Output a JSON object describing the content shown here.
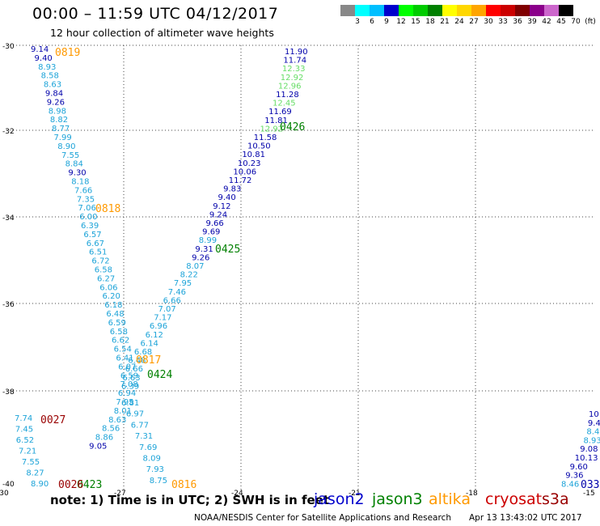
{
  "header": {
    "title": "00:00 – 11:59 UTC 04/12/2017",
    "subtitle": "12 hour collection of altimeter wave heights"
  },
  "legend": {
    "unit": "(ft)",
    "bins": [
      {
        "label": "3",
        "color": "#888888"
      },
      {
        "label": "6",
        "color": "#00ffff"
      },
      {
        "label": "9",
        "color": "#00bfff"
      },
      {
        "label": "12",
        "color": "#0000cd"
      },
      {
        "label": "15",
        "color": "#00ff00"
      },
      {
        "label": "18",
        "color": "#00cc00"
      },
      {
        "label": "21",
        "color": "#008000"
      },
      {
        "label": "24",
        "color": "#ffff00"
      },
      {
        "label": "27",
        "color": "#ffd700"
      },
      {
        "label": "30",
        "color": "#ffa500"
      },
      {
        "label": "33",
        "color": "#ff0000"
      },
      {
        "label": "36",
        "color": "#cc0000"
      },
      {
        "label": "39",
        "color": "#800000"
      },
      {
        "label": "42",
        "color": "#8b008b"
      },
      {
        "label": "45",
        "color": "#cc66cc"
      },
      {
        "label": "70",
        "color": "#000000"
      }
    ]
  },
  "axes": {
    "lat_ticks": [
      "-30",
      "-32",
      "-34",
      "-36",
      "-38",
      "-40"
    ],
    "lon_ticks": [
      "-30",
      "-27",
      "-24",
      "-21",
      "-18",
      "-15"
    ]
  },
  "colors": {
    "light_blue": "#1ca3d8",
    "dark_blue": "#0000aa",
    "light_green": "#66dd66",
    "dark_green": "#008000",
    "orange": "#ff9900",
    "dark_red": "#990000"
  },
  "tracks": [
    {
      "color": "light_blue",
      "values": [
        "9.14",
        "9.40",
        "8.93",
        "8.58",
        "8.63",
        "9.84",
        "9.26",
        "8.98",
        "8.82",
        "8.77",
        "7.99",
        "8.90",
        "7.55",
        "8.84",
        "9.30",
        "8.18",
        "7.66",
        "7.35",
        "7.06",
        "6.00",
        "6.39",
        "6.57",
        "6.67",
        "6.51",
        "6.72",
        "6.58",
        "6.27",
        "6.06",
        "6.20",
        "6.18",
        "6.48",
        "6.59",
        "6.58",
        "6.62",
        "6.54",
        "6.41",
        "6.07",
        "6.59",
        "7.08",
        "6.94",
        "7.95",
        "8.01",
        "8.63",
        "8.56",
        "8.86",
        "9.05"
      ]
    },
    {
      "color": "light_blue",
      "values": [
        "11.90",
        "11.74",
        "12.33",
        "12.92",
        "12.96",
        "11.28",
        "12.45",
        "11.69",
        "11.81",
        "12.92",
        "11.58",
        "10.50",
        "10.81",
        "10.23",
        "10.06",
        "11.72",
        "9.83",
        "9.40",
        "9.12",
        "9.24",
        "9.66",
        "9.69",
        "8.99",
        "9.31",
        "9.26",
        "8.07",
        "8.22",
        "7.95",
        "7.46",
        "6.66",
        "7.07",
        "7.17",
        "6.96",
        "6.12",
        "6.14",
        "6.68",
        "6.48",
        "6.66",
        "6.63",
        "6.39"
      ]
    },
    {
      "color": "light_blue",
      "values": [
        "6.81",
        "6.97",
        "6.77",
        "7.31",
        "7.69",
        "8.09",
        "7.93",
        "8.75"
      ]
    },
    {
      "color": "light_blue",
      "values": [
        "7.74",
        "7.45",
        "6.52",
        "7.21",
        "7.55",
        "8.27",
        "8.90"
      ]
    },
    {
      "color": "light_blue",
      "values": [
        "10",
        "9.4",
        "8.4",
        "8.93",
        "9.08",
        "10.13",
        "9.60",
        "9.36",
        "8.46"
      ]
    }
  ],
  "track_labels": [
    {
      "text": "0819",
      "color": "orange"
    },
    {
      "text": "0818",
      "color": "orange"
    },
    {
      "text": "0817",
      "color": "orange"
    },
    {
      "text": "0816",
      "color": "orange"
    },
    {
      "text": "0426",
      "color": "dark_green"
    },
    {
      "text": "0425",
      "color": "dark_green"
    },
    {
      "text": "0424",
      "color": "dark_green"
    },
    {
      "text": "0423",
      "color": "dark_green"
    },
    {
      "text": "0027",
      "color": "dark_red"
    },
    {
      "text": "0026",
      "color": "dark_red"
    },
    {
      "text": "033",
      "color": "dark_blue"
    }
  ],
  "footer": {
    "note_prefix": "note:",
    "note_text": "1) Time is in UTC; 2) SWH is in feet",
    "satellites": [
      {
        "name": "jason2",
        "color": "#0000cc"
      },
      {
        "name": "jason3",
        "color": "#008000"
      },
      {
        "name": "altika",
        "color": "#ff9900"
      },
      {
        "name": "cryosat",
        "color": "#cc0000"
      },
      {
        "name": "s3a",
        "color": "#990000"
      }
    ],
    "credit": "NOAA/NESDIS Center for Satellite Applications and Research",
    "timestamp": "Apr 13 13:43:02 UTC 2017"
  }
}
